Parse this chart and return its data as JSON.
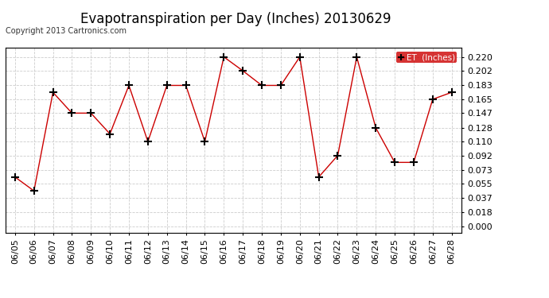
{
  "title": "Evapotranspiration per Day (Inches) 20130629",
  "copyright_text": "Copyright 2013 Cartronics.com",
  "legend_label": "ET  (Inches)",
  "dates": [
    "06/05",
    "06/06",
    "06/07",
    "06/08",
    "06/09",
    "06/10",
    "06/11",
    "06/12",
    "06/13",
    "06/14",
    "06/15",
    "06/16",
    "06/17",
    "06/18",
    "06/19",
    "06/20",
    "06/21",
    "06/22",
    "06/23",
    "06/24",
    "06/25",
    "06/26",
    "06/27",
    "06/28"
  ],
  "values": [
    0.064,
    0.046,
    0.174,
    0.147,
    0.147,
    0.12,
    0.183,
    0.11,
    0.183,
    0.183,
    0.11,
    0.22,
    0.202,
    0.183,
    0.183,
    0.22,
    0.064,
    0.092,
    0.22,
    0.128,
    0.083,
    0.083,
    0.165,
    0.174
  ],
  "line_color": "#cc0000",
  "marker": "+",
  "marker_color": "#000000",
  "bg_color": "#ffffff",
  "plot_bg_color": "#ffffff",
  "grid_color": "#cccccc",
  "yticks": [
    0.0,
    0.018,
    0.037,
    0.055,
    0.073,
    0.092,
    0.11,
    0.128,
    0.147,
    0.165,
    0.183,
    0.202,
    0.22
  ],
  "ylim": [
    -0.008,
    0.232
  ],
  "legend_bg": "#cc0000",
  "legend_text_color": "#ffffff",
  "title_fontsize": 12,
  "tick_fontsize": 8,
  "copyright_fontsize": 7
}
